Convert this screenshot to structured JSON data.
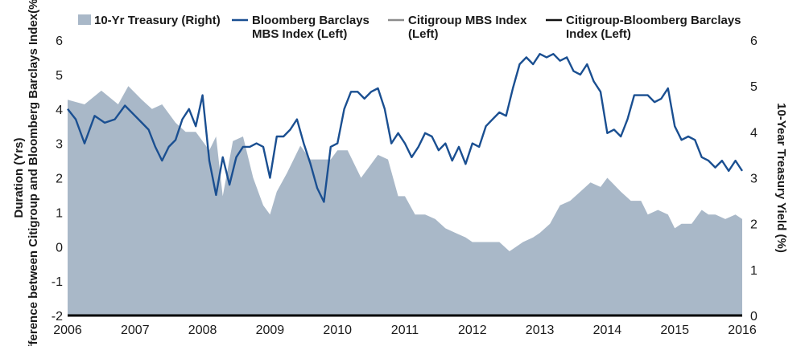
{
  "chart_data": {
    "type": "line",
    "legend": [
      {
        "lines": [
          "10-Yr Treasury (Right)"
        ],
        "color": "#a9b8c8",
        "kind": "area"
      },
      {
        "lines": [
          "Bloomberg Barclays",
          "MBS Index (Left)"
        ],
        "color": "#1a4f91",
        "kind": "line"
      },
      {
        "lines": [
          "Citigroup MBS Index",
          "(Left)"
        ],
        "color": "#8c8c8c",
        "kind": "line"
      },
      {
        "lines": [
          "Citigroup-Bloomberg Barclays",
          "Index (Left)"
        ],
        "color": "#111111",
        "kind": "line"
      }
    ],
    "ylabel_left": [
      "Duration (Yrs)",
      "Difference between Citigroup and Bloomberg Barclays Index(%)"
    ],
    "ylabel_right": "10-Year Treasury Yield (%)",
    "x_ticks": [
      "2006",
      "2007",
      "2008",
      "2009",
      "2010",
      "2011",
      "2012",
      "2013",
      "2014",
      "2015",
      "2016"
    ],
    "ylim_left": [
      -2,
      6
    ],
    "ylim_right": [
      0,
      6
    ],
    "left_ticks": [
      "-2",
      "-1",
      "0",
      "1",
      "2",
      "3",
      "4",
      "5",
      "6"
    ],
    "right_ticks": [
      "0",
      "1",
      "2",
      "3",
      "4",
      "5",
      "6"
    ],
    "xlim": [
      2006,
      2016
    ],
    "series": [
      {
        "name": "10-Yr Treasury (Right)",
        "axis": "right",
        "color": "#a9b8c8",
        "x": [
          2006.0,
          2006.25,
          2006.5,
          2006.75,
          2006.9,
          2007.1,
          2007.25,
          2007.4,
          2007.6,
          2007.75,
          2007.9,
          2008.0,
          2008.1,
          2008.2,
          2008.3,
          2008.45,
          2008.6,
          2008.75,
          2008.9,
          2009.0,
          2009.1,
          2009.25,
          2009.45,
          2009.6,
          2009.75,
          2009.9,
          2010.0,
          2010.15,
          2010.35,
          2010.5,
          2010.6,
          2010.75,
          2010.9,
          2011.0,
          2011.15,
          2011.3,
          2011.45,
          2011.6,
          2011.75,
          2011.9,
          2012.0,
          2012.2,
          2012.4,
          2012.55,
          2012.75,
          2012.9,
          2013.0,
          2013.15,
          2013.3,
          2013.45,
          2013.6,
          2013.75,
          2013.9,
          2014.0,
          2014.2,
          2014.35,
          2014.5,
          2014.6,
          2014.75,
          2014.9,
          2015.0,
          2015.1,
          2015.25,
          2015.4,
          2015.5,
          2015.6,
          2015.75,
          2015.9,
          2016.0
        ],
        "values": [
          4.7,
          4.6,
          4.9,
          4.6,
          5.0,
          4.7,
          4.5,
          4.6,
          4.2,
          4.0,
          4.0,
          3.8,
          3.6,
          3.9,
          2.6,
          3.8,
          3.9,
          3.0,
          2.4,
          2.2,
          2.7,
          3.1,
          3.7,
          3.4,
          3.4,
          3.4,
          3.6,
          3.6,
          3.0,
          3.3,
          3.5,
          3.4,
          2.6,
          2.6,
          2.2,
          2.2,
          2.1,
          1.9,
          1.8,
          1.7,
          1.6,
          1.6,
          1.6,
          1.4,
          1.6,
          1.7,
          1.8,
          2.0,
          2.4,
          2.5,
          2.7,
          2.9,
          2.8,
          3.0,
          2.7,
          2.5,
          2.5,
          2.2,
          2.3,
          2.2,
          1.9,
          2.0,
          2.0,
          2.3,
          2.2,
          2.2,
          2.1,
          2.2,
          2.1
        ]
      },
      {
        "name": "Bloomberg Barclays MBS Index (Left)",
        "axis": "left",
        "color": "#1a4f91",
        "x": [
          2006.0,
          2006.12,
          2006.25,
          2006.4,
          2006.55,
          2006.7,
          2006.85,
          2007.0,
          2007.1,
          2007.2,
          2007.3,
          2007.4,
          2007.5,
          2007.6,
          2007.7,
          2007.8,
          2007.9,
          2008.0,
          2008.1,
          2008.2,
          2008.3,
          2008.4,
          2008.5,
          2008.6,
          2008.7,
          2008.8,
          2008.9,
          2009.0,
          2009.1,
          2009.2,
          2009.3,
          2009.4,
          2009.5,
          2009.6,
          2009.7,
          2009.8,
          2009.9,
          2010.0,
          2010.1,
          2010.2,
          2010.3,
          2010.4,
          2010.5,
          2010.6,
          2010.7,
          2010.8,
          2010.9,
          2011.0,
          2011.1,
          2011.2,
          2011.3,
          2011.4,
          2011.5,
          2011.6,
          2011.7,
          2011.8,
          2011.9,
          2012.0,
          2012.1,
          2012.2,
          2012.3,
          2012.4,
          2012.5,
          2012.6,
          2012.7,
          2012.8,
          2012.9,
          2013.0,
          2013.1,
          2013.2,
          2013.3,
          2013.4,
          2013.5,
          2013.6,
          2013.7,
          2013.8,
          2013.9,
          2014.0,
          2014.1,
          2014.2,
          2014.3,
          2014.4,
          2014.5,
          2014.6,
          2014.7,
          2014.8,
          2014.9,
          2015.0,
          2015.1,
          2015.2,
          2015.3,
          2015.4,
          2015.5,
          2015.6,
          2015.7,
          2015.8,
          2015.9,
          2016.0
        ],
        "values": [
          4.0,
          3.7,
          3.0,
          3.8,
          3.6,
          3.7,
          4.1,
          3.8,
          3.6,
          3.4,
          2.9,
          2.5,
          2.9,
          3.1,
          3.7,
          4.0,
          3.5,
          4.4,
          2.5,
          1.5,
          2.6,
          1.8,
          2.6,
          2.9,
          2.9,
          3.0,
          2.9,
          2.0,
          3.2,
          3.2,
          3.4,
          3.7,
          3.0,
          2.4,
          1.7,
          1.3,
          2.9,
          3.0,
          4.0,
          4.5,
          4.5,
          4.3,
          4.5,
          4.6,
          4.0,
          3.0,
          3.3,
          3.0,
          2.6,
          2.9,
          3.3,
          3.2,
          2.8,
          3.0,
          2.5,
          2.9,
          2.4,
          3.0,
          2.9,
          3.5,
          3.7,
          3.9,
          3.8,
          4.6,
          5.3,
          5.5,
          5.3,
          5.6,
          5.5,
          5.6,
          5.4,
          5.5,
          5.1,
          5.0,
          5.3,
          4.8,
          4.5,
          3.3,
          3.4,
          3.2,
          3.7,
          4.4,
          4.4,
          4.4,
          4.2,
          4.3,
          4.6,
          3.5,
          3.1,
          3.2,
          3.1,
          2.6,
          2.5,
          2.3,
          2.5,
          2.2,
          2.5,
          2.2
        ],
        "note": "values approximate; see plotted path"
      },
      {
        "name": "Citigroup MBS Index (Left)",
        "axis": "left",
        "color": "#8c8c8c",
        "x": [],
        "values": []
      },
      {
        "name": "Citigroup-Bloomberg Barclays Index (Left)",
        "axis": "left",
        "color": "#111111",
        "x": [],
        "values": []
      }
    ]
  }
}
